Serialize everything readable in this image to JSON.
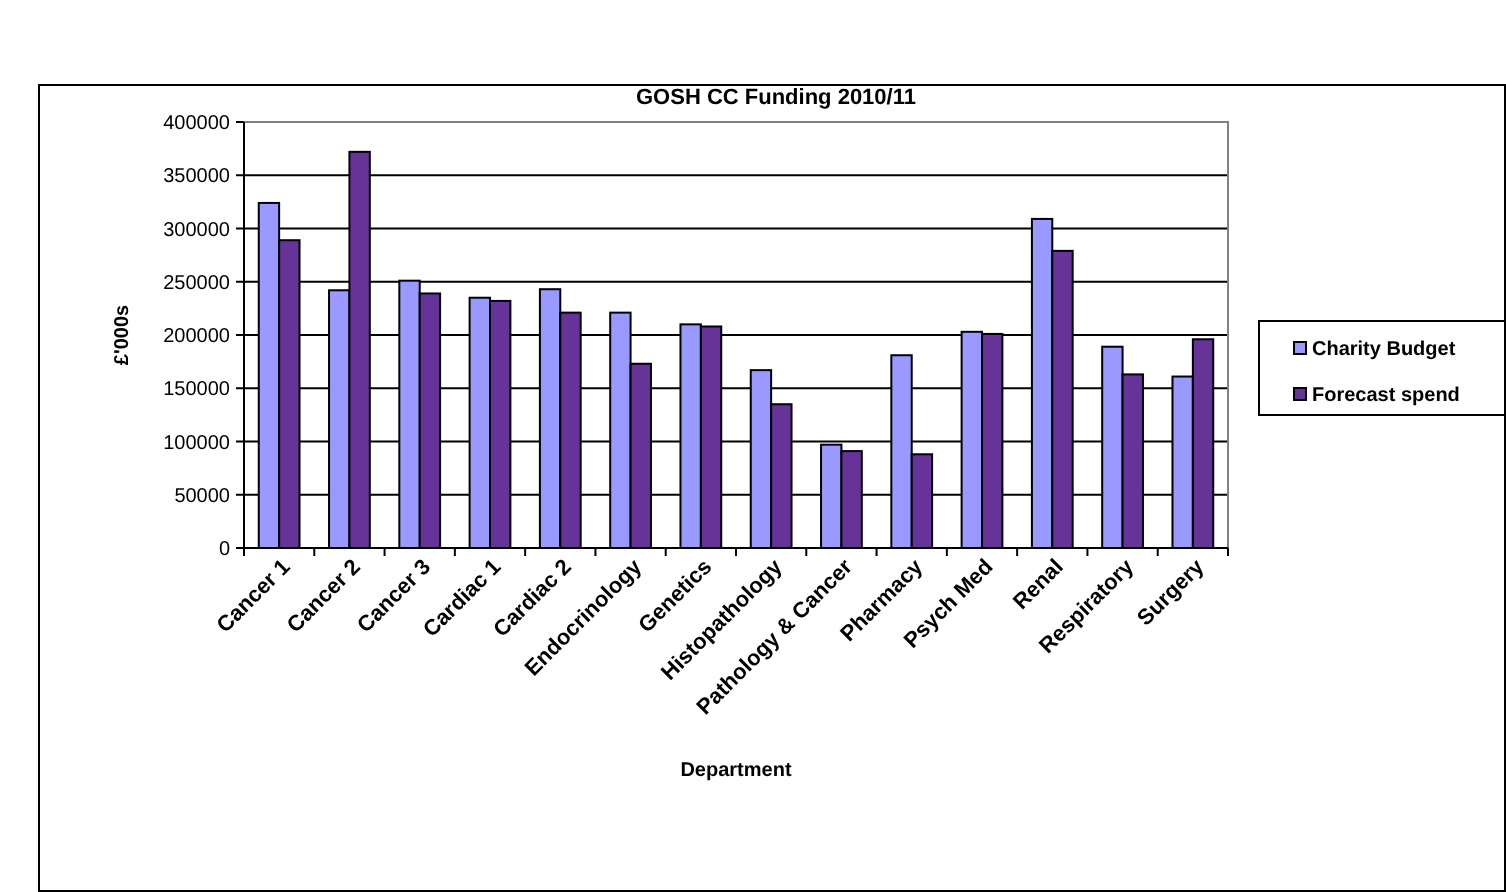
{
  "chart_data": {
    "type": "bar",
    "title": "GOSH CC Funding 2010/11",
    "xlabel": "Department",
    "ylabel": "£'000s",
    "categories": [
      "Cancer 1",
      "Cancer 2",
      "Cancer 3",
      "Cardiac 1",
      "Cardiac 2",
      "Endocrinology",
      "Genetics",
      "Histopathology",
      "Pathology & Cancer",
      "Pharmacy",
      "Psych Med",
      "Renal",
      "Respiratory",
      "Surgery"
    ],
    "series": [
      {
        "name": "Charity Budget",
        "color": "#9999ff",
        "values": [
          324000,
          242000,
          251000,
          235000,
          243000,
          221000,
          210000,
          167000,
          97000,
          181000,
          203000,
          309000,
          189000,
          161000
        ]
      },
      {
        "name": "Forecast spend",
        "color": "#663399",
        "values": [
          289000,
          372000,
          239000,
          232000,
          221000,
          173000,
          208000,
          135000,
          91000,
          88000,
          201000,
          279000,
          163000,
          196000
        ]
      }
    ],
    "ylim": [
      0,
      400000
    ],
    "yticks": [
      0,
      50000,
      100000,
      150000,
      200000,
      250000,
      300000,
      350000,
      400000
    ],
    "grid": "y",
    "legend": "right"
  }
}
